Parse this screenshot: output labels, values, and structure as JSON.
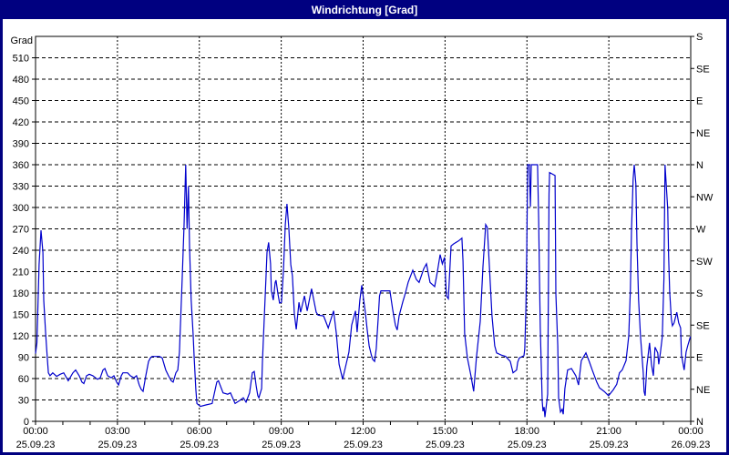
{
  "window": {
    "title": "Windrichtung [Grad]"
  },
  "colors": {
    "titlebar_bg": "#000080",
    "titlebar_text": "#ffffff",
    "window_border": "#000080",
    "plot_bg": "#ffffff",
    "axis": "#000000",
    "grid": "#000000",
    "line": "#0000cc"
  },
  "chart_data": {
    "type": "line",
    "title": "Windrichtung [Grad]",
    "grid": true,
    "y_axis_left": {
      "label": "Grad",
      "min": 0,
      "max": 540,
      "tick_step": 30,
      "ticks": [
        0,
        30,
        60,
        90,
        120,
        150,
        180,
        210,
        240,
        270,
        300,
        330,
        360,
        390,
        420,
        450,
        480,
        510
      ]
    },
    "y_axis_right": {
      "ticks": [
        {
          "value": 0,
          "label": "N"
        },
        {
          "value": 45,
          "label": "NE"
        },
        {
          "value": 90,
          "label": "E"
        },
        {
          "value": 135,
          "label": "SE"
        },
        {
          "value": 180,
          "label": "S"
        },
        {
          "value": 225,
          "label": "SW"
        },
        {
          "value": 270,
          "label": "W"
        },
        {
          "value": 315,
          "label": "NW"
        },
        {
          "value": 360,
          "label": "N"
        },
        {
          "value": 405,
          "label": "NE"
        },
        {
          "value": 450,
          "label": "E"
        },
        {
          "value": 495,
          "label": "SE"
        },
        {
          "value": 540,
          "label": "S"
        }
      ]
    },
    "x_axis": {
      "min_hours": 0,
      "max_hours": 24,
      "minor_tick_hours": 1,
      "labels": [
        {
          "hours": 0,
          "time": "00:00",
          "date": "25.09.23"
        },
        {
          "hours": 3,
          "time": "03:00",
          "date": "25.09.23"
        },
        {
          "hours": 6,
          "time": "06:00",
          "date": "25.09.23"
        },
        {
          "hours": 9,
          "time": "09:00",
          "date": "25.09.23"
        },
        {
          "hours": 12,
          "time": "12:00",
          "date": "25.09.23"
        },
        {
          "hours": 15,
          "time": "15:00",
          "date": "25.09.23"
        },
        {
          "hours": 18,
          "time": "18:00",
          "date": "25.09.23"
        },
        {
          "hours": 21,
          "time": "21:00",
          "date": "25.09.23"
        },
        {
          "hours": 24,
          "time": "00:00",
          "date": "26.09.23"
        }
      ],
      "grid_step_hours": 3
    },
    "series": [
      {
        "name": "Windrichtung",
        "unit": "Grad",
        "color": "#0000cc",
        "points_hours_deg": [
          [
            0,
            95
          ],
          [
            0.05,
            110
          ],
          [
            0.13,
            220
          ],
          [
            0.2,
            268
          ],
          [
            0.27,
            237
          ],
          [
            0.3,
            170
          ],
          [
            0.37,
            123
          ],
          [
            0.43,
            89
          ],
          [
            0.47,
            68
          ],
          [
            0.53,
            64
          ],
          [
            0.63,
            68
          ],
          [
            0.77,
            63
          ],
          [
            0.9,
            66
          ],
          [
            1.03,
            68
          ],
          [
            1.2,
            57
          ],
          [
            1.37,
            68
          ],
          [
            1.47,
            72
          ],
          [
            1.6,
            64
          ],
          [
            1.7,
            55
          ],
          [
            1.77,
            53
          ],
          [
            1.87,
            64
          ],
          [
            1.97,
            66
          ],
          [
            2.1,
            64
          ],
          [
            2.27,
            59
          ],
          [
            2.37,
            61
          ],
          [
            2.47,
            72
          ],
          [
            2.54,
            74
          ],
          [
            2.64,
            64
          ],
          [
            2.77,
            61
          ],
          [
            2.87,
            64
          ],
          [
            2.97,
            55
          ],
          [
            3.04,
            51
          ],
          [
            3.14,
            64
          ],
          [
            3.2,
            68
          ],
          [
            3.37,
            68
          ],
          [
            3.47,
            64
          ],
          [
            3.6,
            61
          ],
          [
            3.7,
            64
          ],
          [
            3.8,
            51
          ],
          [
            3.87,
            45
          ],
          [
            3.94,
            42
          ],
          [
            4.04,
            64
          ],
          [
            4.14,
            84
          ],
          [
            4.21,
            89
          ],
          [
            4.27,
            91
          ],
          [
            4.54,
            91
          ],
          [
            4.64,
            89
          ],
          [
            4.77,
            72
          ],
          [
            4.87,
            64
          ],
          [
            4.97,
            57
          ],
          [
            5.04,
            55
          ],
          [
            5.14,
            68
          ],
          [
            5.21,
            72
          ],
          [
            5.27,
            97
          ],
          [
            5.37,
            199
          ],
          [
            5.44,
            276
          ],
          [
            5.5,
            360
          ],
          [
            5.55,
            270
          ],
          [
            5.6,
            330
          ],
          [
            5.64,
            245
          ],
          [
            5.7,
            170
          ],
          [
            5.77,
            123
          ],
          [
            5.81,
            89
          ],
          [
            5.87,
            45
          ],
          [
            5.91,
            25
          ],
          [
            6.04,
            21
          ],
          [
            6.24,
            23
          ],
          [
            6.47,
            25
          ],
          [
            6.64,
            55
          ],
          [
            6.7,
            57
          ],
          [
            6.87,
            40
          ],
          [
            7.04,
            38
          ],
          [
            7.14,
            40
          ],
          [
            7.31,
            25
          ],
          [
            7.47,
            29
          ],
          [
            7.61,
            33
          ],
          [
            7.71,
            27
          ],
          [
            7.84,
            40
          ],
          [
            7.94,
            68
          ],
          [
            8.01,
            70
          ],
          [
            8.08,
            50
          ],
          [
            8.14,
            36
          ],
          [
            8.18,
            33
          ],
          [
            8.28,
            46
          ],
          [
            8.31,
            84
          ],
          [
            8.38,
            148
          ],
          [
            8.44,
            199
          ],
          [
            8.48,
            237
          ],
          [
            8.54,
            251
          ],
          [
            8.61,
            221
          ],
          [
            8.64,
            183
          ],
          [
            8.71,
            170
          ],
          [
            8.78,
            195
          ],
          [
            8.81,
            198
          ],
          [
            8.88,
            179
          ],
          [
            8.94,
            166
          ],
          [
            9.01,
            167
          ],
          [
            9.08,
            210
          ],
          [
            9.15,
            276
          ],
          [
            9.21,
            305
          ],
          [
            9.28,
            270
          ],
          [
            9.35,
            220
          ],
          [
            9.41,
            204
          ],
          [
            9.45,
            174
          ],
          [
            9.48,
            151
          ],
          [
            9.55,
            129
          ],
          [
            9.65,
            167
          ],
          [
            9.71,
            153
          ],
          [
            9.85,
            176
          ],
          [
            9.95,
            155
          ],
          [
            10.11,
            186
          ],
          [
            10.28,
            153
          ],
          [
            10.35,
            149
          ],
          [
            10.55,
            148
          ],
          [
            10.72,
            131
          ],
          [
            10.92,
            155
          ],
          [
            11.02,
            123
          ],
          [
            11.12,
            80
          ],
          [
            11.25,
            59
          ],
          [
            11.48,
            97
          ],
          [
            11.58,
            135
          ],
          [
            11.72,
            155
          ],
          [
            11.78,
            125
          ],
          [
            11.88,
            170
          ],
          [
            11.95,
            191
          ],
          [
            12.02,
            170
          ],
          [
            12.08,
            153
          ],
          [
            12.15,
            128
          ],
          [
            12.22,
            106
          ],
          [
            12.3,
            93
          ],
          [
            12.35,
            87
          ],
          [
            12.42,
            84
          ],
          [
            12.48,
            102
          ],
          [
            12.55,
            144
          ],
          [
            12.6,
            176
          ],
          [
            12.65,
            183
          ],
          [
            12.98,
            183
          ],
          [
            13.08,
            157
          ],
          [
            13.18,
            135
          ],
          [
            13.25,
            128
          ],
          [
            13.32,
            148
          ],
          [
            13.45,
            167
          ],
          [
            13.55,
            180
          ],
          [
            13.65,
            195
          ],
          [
            13.82,
            212
          ],
          [
            13.95,
            199
          ],
          [
            14.05,
            195
          ],
          [
            14.22,
            214
          ],
          [
            14.32,
            221
          ],
          [
            14.45,
            195
          ],
          [
            14.62,
            189
          ],
          [
            14.72,
            210
          ],
          [
            14.82,
            234
          ],
          [
            14.9,
            221
          ],
          [
            14.98,
            230
          ],
          [
            15.05,
            176
          ],
          [
            15.12,
            172
          ],
          [
            15.22,
            246
          ],
          [
            15.32,
            249
          ],
          [
            15.49,
            253
          ],
          [
            15.62,
            257
          ],
          [
            15.66,
            225
          ],
          [
            15.72,
            123
          ],
          [
            15.82,
            89
          ],
          [
            15.95,
            64
          ],
          [
            16.05,
            42
          ],
          [
            16.15,
            89
          ],
          [
            16.29,
            140
          ],
          [
            16.39,
            217
          ],
          [
            16.49,
            276
          ],
          [
            16.55,
            272
          ],
          [
            16.62,
            221
          ],
          [
            16.72,
            148
          ],
          [
            16.82,
            106
          ],
          [
            16.89,
            96
          ],
          [
            17.05,
            93
          ],
          [
            17.22,
            91
          ],
          [
            17.39,
            84
          ],
          [
            17.49,
            68
          ],
          [
            17.62,
            72
          ],
          [
            17.66,
            83
          ],
          [
            17.72,
            89
          ],
          [
            17.89,
            92
          ],
          [
            17.92,
            102
          ],
          [
            17.96,
            157
          ],
          [
            17.99,
            234
          ],
          [
            18.03,
            360
          ],
          [
            18.09,
            360
          ],
          [
            18.13,
            301
          ],
          [
            18.16,
            360
          ],
          [
            18.39,
            360
          ],
          [
            18.43,
            285
          ],
          [
            18.46,
            204
          ],
          [
            18.49,
            131
          ],
          [
            18.56,
            29
          ],
          [
            18.59,
            14
          ],
          [
            18.63,
            20
          ],
          [
            18.66,
            6
          ],
          [
            18.76,
            38
          ],
          [
            18.79,
            199
          ],
          [
            18.81,
            319
          ],
          [
            18.83,
            349
          ],
          [
            19.03,
            345
          ],
          [
            19.06,
            179
          ],
          [
            19.13,
            106
          ],
          [
            19.16,
            33
          ],
          [
            19.23,
            13
          ],
          [
            19.29,
            17
          ],
          [
            19.33,
            10
          ],
          [
            19.39,
            46
          ],
          [
            19.49,
            72
          ],
          [
            19.63,
            74
          ],
          [
            19.79,
            64
          ],
          [
            19.89,
            51
          ],
          [
            19.99,
            85
          ],
          [
            20.16,
            96
          ],
          [
            20.29,
            83
          ],
          [
            20.39,
            72
          ],
          [
            20.56,
            55
          ],
          [
            20.66,
            47
          ],
          [
            20.83,
            42
          ],
          [
            20.99,
            36
          ],
          [
            21.16,
            44
          ],
          [
            21.29,
            52
          ],
          [
            21.39,
            68
          ],
          [
            21.49,
            72
          ],
          [
            21.63,
            85
          ],
          [
            21.73,
            120
          ],
          [
            21.79,
            186
          ],
          [
            21.83,
            268
          ],
          [
            21.89,
            340
          ],
          [
            21.93,
            360
          ],
          [
            21.99,
            333
          ],
          [
            22.03,
            250
          ],
          [
            22.09,
            170
          ],
          [
            22.16,
            119
          ],
          [
            22.26,
            68
          ],
          [
            22.29,
            42
          ],
          [
            22.33,
            36
          ],
          [
            22.39,
            77
          ],
          [
            22.49,
            110
          ],
          [
            22.56,
            80
          ],
          [
            22.63,
            64
          ],
          [
            22.69,
            104
          ],
          [
            22.79,
            96
          ],
          [
            22.83,
            80
          ],
          [
            22.89,
            96
          ],
          [
            22.96,
            119
          ],
          [
            23.02,
            200
          ],
          [
            23.06,
            360
          ],
          [
            23.16,
            297
          ],
          [
            23.19,
            233
          ],
          [
            23.23,
            182
          ],
          [
            23.29,
            144
          ],
          [
            23.33,
            134
          ],
          [
            23.39,
            138
          ],
          [
            23.49,
            153
          ],
          [
            23.56,
            138
          ],
          [
            23.63,
            131
          ],
          [
            23.66,
            93
          ],
          [
            23.76,
            72
          ],
          [
            23.83,
            97
          ],
          [
            23.89,
            106
          ],
          [
            23.99,
            119
          ]
        ]
      }
    ]
  }
}
